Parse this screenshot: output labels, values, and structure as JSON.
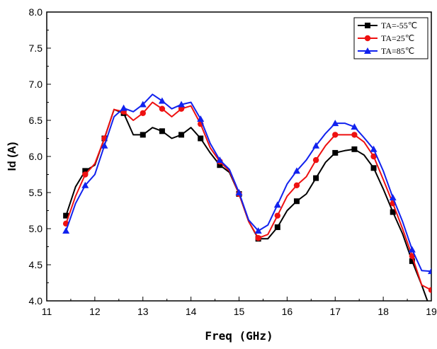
{
  "chart_data": {
    "type": "line",
    "xlabel": "Freq (GHz)",
    "ylabel": "Id (A)",
    "xlim": [
      11,
      19
    ],
    "ylim": [
      4.0,
      8.0
    ],
    "xticks": [
      "11",
      "12",
      "13",
      "14",
      "15",
      "16",
      "17",
      "18",
      "19"
    ],
    "yticks": [
      "4.0",
      "4.5",
      "5.0",
      "5.5",
      "6.0",
      "6.5",
      "7.0",
      "7.5",
      "8.0"
    ],
    "grid": false,
    "legend_position": "top-right",
    "series": [
      {
        "name": "TA=-55℃",
        "color": "#000000",
        "marker": "square",
        "x": [
          11.4,
          11.6,
          11.8,
          12.0,
          12.2,
          12.4,
          12.6,
          12.8,
          13.0,
          13.2,
          13.4,
          13.6,
          13.8,
          14.0,
          14.2,
          14.4,
          14.6,
          14.8,
          15.0,
          15.2,
          15.4,
          15.6,
          15.8,
          16.0,
          16.2,
          16.4,
          16.6,
          16.8,
          17.0,
          17.2,
          17.4,
          17.6,
          17.8,
          18.0,
          18.2,
          18.4,
          18.6,
          18.8,
          19.0
        ],
        "values": [
          5.18,
          5.58,
          5.8,
          5.88,
          6.25,
          6.65,
          6.6,
          6.3,
          6.3,
          6.4,
          6.35,
          6.25,
          6.3,
          6.4,
          6.25,
          6.05,
          5.88,
          5.78,
          5.48,
          5.1,
          4.86,
          4.86,
          5.02,
          5.25,
          5.38,
          5.48,
          5.7,
          5.92,
          6.05,
          6.08,
          6.1,
          6.02,
          5.84,
          5.55,
          5.23,
          4.93,
          4.55,
          4.22,
          3.85
        ],
        "marker_every": 2
      },
      {
        "name": "TA=25℃",
        "color": "#ee1111",
        "marker": "circle",
        "x": [
          11.4,
          11.6,
          11.8,
          12.0,
          12.2,
          12.4,
          12.6,
          12.8,
          13.0,
          13.2,
          13.4,
          13.6,
          13.8,
          14.0,
          14.2,
          14.4,
          14.6,
          14.8,
          15.0,
          15.2,
          15.4,
          15.6,
          15.8,
          16.0,
          16.2,
          16.4,
          16.6,
          16.8,
          17.0,
          17.2,
          17.4,
          17.6,
          17.8,
          18.0,
          18.2,
          18.4,
          18.6,
          18.8,
          19.0
        ],
        "values": [
          5.07,
          5.45,
          5.75,
          5.9,
          6.25,
          6.65,
          6.62,
          6.5,
          6.6,
          6.75,
          6.66,
          6.55,
          6.66,
          6.7,
          6.45,
          6.12,
          5.93,
          5.8,
          5.48,
          5.1,
          4.87,
          4.92,
          5.18,
          5.45,
          5.6,
          5.72,
          5.95,
          6.15,
          6.3,
          6.3,
          6.3,
          6.2,
          6.0,
          5.68,
          5.35,
          5.0,
          4.62,
          4.22,
          4.15
        ],
        "marker_every": 2
      },
      {
        "name": "TA=85℃",
        "color": "#1122ee",
        "marker": "triangle",
        "x": [
          11.4,
          11.6,
          11.8,
          12.0,
          12.2,
          12.4,
          12.6,
          12.8,
          13.0,
          13.2,
          13.4,
          13.6,
          13.8,
          14.0,
          14.2,
          14.4,
          14.6,
          14.8,
          15.0,
          15.2,
          15.4,
          15.6,
          15.8,
          16.0,
          16.2,
          16.4,
          16.6,
          16.8,
          17.0,
          17.2,
          17.4,
          17.6,
          17.8,
          18.0,
          18.2,
          18.4,
          18.6,
          18.8,
          19.0
        ],
        "values": [
          4.97,
          5.35,
          5.6,
          5.75,
          6.15,
          6.55,
          6.67,
          6.62,
          6.72,
          6.86,
          6.77,
          6.66,
          6.72,
          6.75,
          6.52,
          6.18,
          5.95,
          5.82,
          5.5,
          5.12,
          4.97,
          5.05,
          5.33,
          5.62,
          5.8,
          5.95,
          6.15,
          6.32,
          6.46,
          6.46,
          6.41,
          6.26,
          6.1,
          5.8,
          5.43,
          5.1,
          4.71,
          4.42,
          4.41
        ],
        "marker_every": 2
      }
    ]
  }
}
